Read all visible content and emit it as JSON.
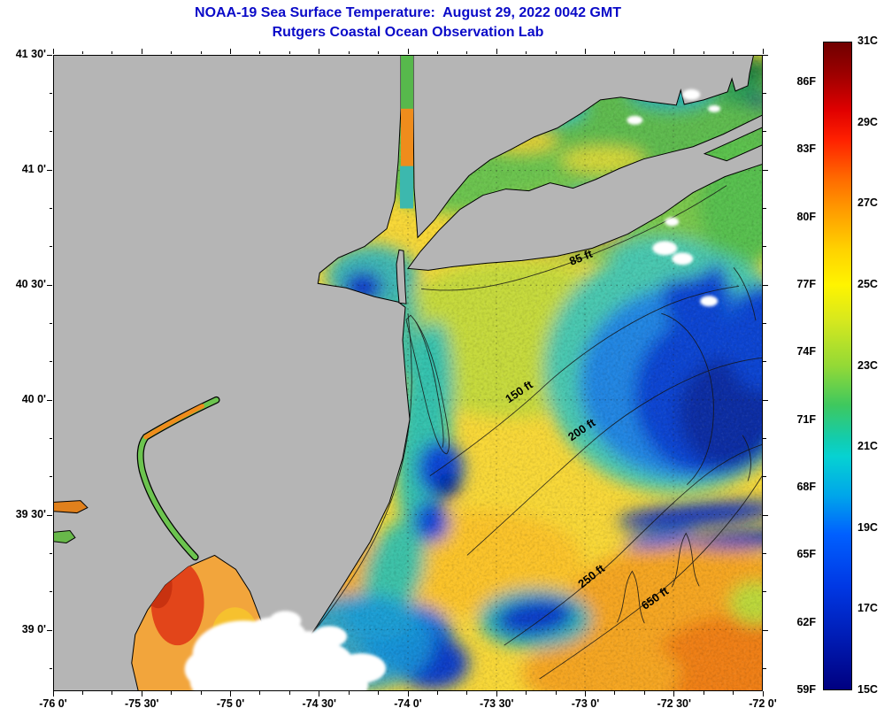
{
  "header": {
    "title": "NOAA-19 Sea Surface Temperature:  August 29, 2022 0042 GMT",
    "subtitle": "Rutgers Coastal Ocean Observation Lab"
  },
  "axes": {
    "x_ticks": [
      "-76 0'",
      "-75 30'",
      "-75 0'",
      "-74 30'",
      "-74 0'",
      "-73 30'",
      "-73 0'",
      "-72 30'",
      "-72 0'"
    ],
    "y_ticks": [
      "41 30'",
      "41 0'",
      "40 30'",
      "40 0'",
      "39 30'",
      "39 0'"
    ]
  },
  "colorbar": {
    "f_labels": [
      "86F",
      "83F",
      "80F",
      "77F",
      "74F",
      "71F",
      "68F",
      "65F",
      "62F",
      "59F"
    ],
    "c_labels": [
      "31C",
      "29C",
      "27C",
      "25C",
      "23C",
      "21C",
      "19C",
      "17C",
      "15C"
    ],
    "range_celsius": [
      15,
      31
    ],
    "range_fahrenheit": [
      59,
      86
    ]
  },
  "map": {
    "contour_labels": [
      "85 ft",
      "150 ft",
      "200 ft",
      "250 ft",
      "650 ft"
    ]
  },
  "colors": {
    "title_text": "#0a0ac8",
    "land": "#b5b5b5",
    "frame": "#000000",
    "tick_text": "#000000"
  }
}
